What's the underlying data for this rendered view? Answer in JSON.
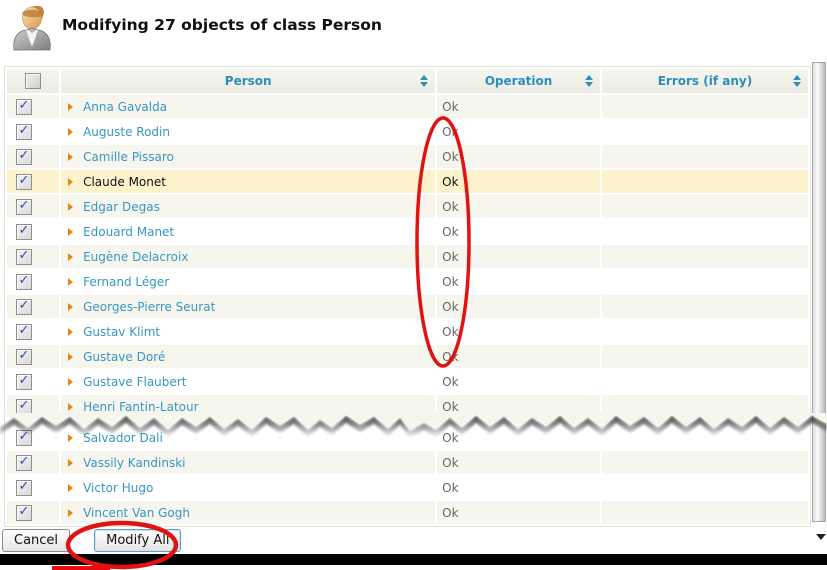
{
  "header": {
    "title": "Modifying 27 objects of class Person",
    "icon": "person-avatar-icon"
  },
  "table": {
    "columns": [
      {
        "label": "Person"
      },
      {
        "label": "Operation"
      },
      {
        "label": "Errors (if any)"
      }
    ],
    "tear_after_row": 13,
    "rows": [
      {
        "name": "Anna Gavalda",
        "operation": "Ok",
        "errors": "",
        "checked": true,
        "highlighted": false
      },
      {
        "name": "Auguste Rodin",
        "operation": "Ok",
        "errors": "",
        "checked": true,
        "highlighted": false
      },
      {
        "name": "Camille Pissaro",
        "operation": "Ok",
        "errors": "",
        "checked": true,
        "highlighted": false
      },
      {
        "name": "Claude Monet",
        "operation": "Ok",
        "errors": "",
        "checked": true,
        "highlighted": true
      },
      {
        "name": "Edgar Degas",
        "operation": "Ok",
        "errors": "",
        "checked": true,
        "highlighted": false
      },
      {
        "name": "Edouard Manet",
        "operation": "Ok",
        "errors": "",
        "checked": true,
        "highlighted": false
      },
      {
        "name": "Eugène Delacroix",
        "operation": "Ok",
        "errors": "",
        "checked": true,
        "highlighted": false
      },
      {
        "name": "Fernand Léger",
        "operation": "Ok",
        "errors": "",
        "checked": true,
        "highlighted": false
      },
      {
        "name": "Georges-Pierre Seurat",
        "operation": "Ok",
        "errors": "",
        "checked": true,
        "highlighted": false
      },
      {
        "name": "Gustav Klimt",
        "operation": "Ok",
        "errors": "",
        "checked": true,
        "highlighted": false
      },
      {
        "name": "Gustave Doré",
        "operation": "Ok",
        "errors": "",
        "checked": true,
        "highlighted": false
      },
      {
        "name": "Gustave Flaubert",
        "operation": "Ok",
        "errors": "",
        "checked": true,
        "highlighted": false
      },
      {
        "name": "Henri Fantin-Latour",
        "operation": "Ok",
        "errors": "",
        "checked": true,
        "highlighted": false
      },
      {
        "name": "Salvador Dali",
        "operation": "Ok",
        "errors": "",
        "checked": true,
        "highlighted": false
      },
      {
        "name": "Vassily Kandinski",
        "operation": "Ok",
        "errors": "",
        "checked": true,
        "highlighted": false
      },
      {
        "name": "Victor Hugo",
        "operation": "Ok",
        "errors": "",
        "checked": true,
        "highlighted": false
      },
      {
        "name": "Vincent Van Gogh",
        "operation": "Ok",
        "errors": "",
        "checked": true,
        "highlighted": false
      }
    ]
  },
  "footer": {
    "cancel_label": "Cancel",
    "modify_all_label": "Modify All"
  },
  "icons": {
    "check_glyph": "✓",
    "row_bullet": "triangle-right-icon",
    "sort": "sort-updown-icon",
    "avatar": "person-avatar-icon",
    "scroll_down": "scroll-down-arrow-icon"
  },
  "colors": {
    "annotation_red": "#e01212",
    "redaction_bar": "#e80c0c",
    "link_blue": "#3597c4",
    "header_blue": "#2a8fbd",
    "highlight_row": "#fcf3cd",
    "alt_row": "#f7f6ee",
    "ok_text": "#666666",
    "bottom_bar": "#000000"
  }
}
